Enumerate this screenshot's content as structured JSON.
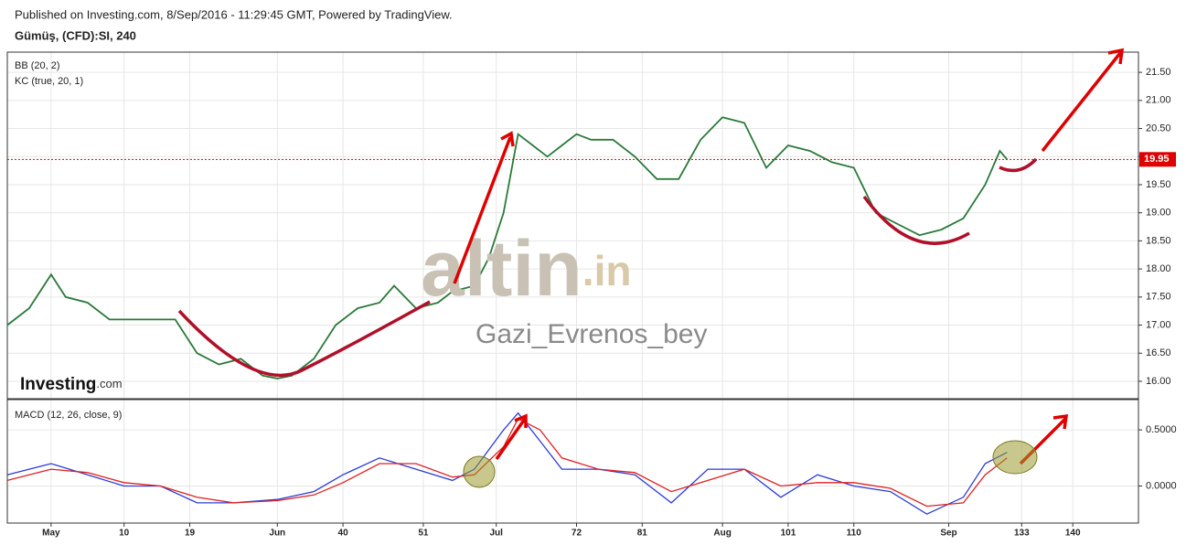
{
  "header": {
    "published": "Published on Investing.com, 8/Sep/2016 - 11:29:45 GMT, Powered by TradingView.",
    "symbol": "Gümüş, (CFD):SI, 240"
  },
  "watermark": {
    "brand": "altin",
    "brand_suffix": ".in",
    "author": "Gazi_Evrenos_bey"
  },
  "logo": {
    "name": "Investing",
    "suffix": ".com"
  },
  "chart_data": [
    {
      "type": "line",
      "annotations": [
        "BB (20, 2)",
        "KC (true, 20, 1)"
      ],
      "x": [
        -6,
        -3,
        0,
        2,
        5,
        8,
        11,
        14,
        17,
        20,
        23,
        26,
        29,
        31,
        33,
        36,
        39,
        42,
        45,
        47,
        50,
        53,
        55,
        58,
        60,
        62,
        64,
        66,
        68,
        70,
        72,
        74,
        77,
        80,
        83,
        86,
        89,
        92,
        95,
        98,
        101,
        104,
        107,
        110,
        113,
        116,
        119,
        122,
        125,
        128,
        130,
        131
      ],
      "values": [
        17.0,
        17.3,
        17.9,
        17.5,
        17.4,
        17.1,
        17.1,
        17.1,
        17.1,
        16.5,
        16.3,
        16.4,
        16.1,
        16.05,
        16.1,
        16.4,
        17.0,
        17.3,
        17.4,
        17.7,
        17.3,
        17.4,
        17.6,
        17.7,
        18.2,
        19.0,
        20.4,
        20.2,
        20.0,
        20.2,
        20.4,
        20.3,
        20.3,
        20.0,
        19.6,
        19.6,
        20.3,
        20.7,
        20.6,
        19.8,
        20.2,
        20.1,
        19.9,
        19.8,
        19.0,
        18.8,
        18.6,
        18.7,
        18.9,
        19.5,
        20.1,
        19.95
      ],
      "color": "#2a7a3a",
      "last_price": 19.95,
      "last_price_color": "#e00000",
      "xlim": [
        -6,
        149
      ],
      "ylim": [
        15.69,
        21.86
      ],
      "yticks": [
        {
          "value": 16,
          "label": "16.00"
        },
        {
          "value": 16.5,
          "label": "16.50"
        },
        {
          "value": 17,
          "label": "17.00"
        },
        {
          "value": 17.5,
          "label": "17.50"
        },
        {
          "value": 18,
          "label": "18.00"
        },
        {
          "value": 18.5,
          "label": "18.50"
        },
        {
          "value": 19,
          "label": "19.00"
        },
        {
          "value": 19.5,
          "label": "19.50"
        },
        {
          "value": 20,
          "label": "20.00"
        },
        {
          "value": 20.5,
          "label": "20.50"
        },
        {
          "value": 21,
          "label": "21.00"
        },
        {
          "value": 21.5,
          "label": "21.50"
        }
      ],
      "grid": true
    },
    {
      "type": "line",
      "title": "MACD (12, 26, close, 9)",
      "x": [
        -6,
        0,
        5,
        10,
        15,
        20,
        25,
        31,
        36,
        40,
        45,
        50,
        55,
        58,
        62,
        64,
        67,
        70,
        75,
        80,
        85,
        90,
        95,
        100,
        105,
        110,
        115,
        120,
        125,
        128,
        131
      ],
      "series": [
        {
          "color": "#2b3bd6",
          "values": [
            0.1,
            0.2,
            0.1,
            0.0,
            0.0,
            -0.15,
            -0.15,
            -0.12,
            -0.05,
            0.1,
            0.25,
            0.15,
            0.05,
            0.15,
            0.5,
            0.65,
            0.4,
            0.15,
            0.15,
            0.1,
            -0.15,
            0.15,
            0.15,
            -0.1,
            0.1,
            0.0,
            -0.05,
            -0.25,
            -0.1,
            0.2,
            0.3
          ]
        },
        {
          "color": "#e02020",
          "values": [
            0.05,
            0.15,
            0.12,
            0.03,
            0.0,
            -0.1,
            -0.15,
            -0.13,
            -0.08,
            0.03,
            0.2,
            0.2,
            0.08,
            0.1,
            0.35,
            0.6,
            0.5,
            0.25,
            0.15,
            0.12,
            -0.05,
            0.05,
            0.15,
            0.0,
            0.03,
            0.03,
            -0.02,
            -0.18,
            -0.15,
            0.1,
            0.25
          ]
        }
      ],
      "xlim": [
        -6,
        149
      ],
      "ylim": [
        -0.33,
        0.77
      ],
      "yticks": [
        {
          "value": 0,
          "label": "0.0000"
        },
        {
          "value": 0.5,
          "label": "0.5000"
        }
      ],
      "xticks": [
        {
          "value": 0,
          "label": "May"
        },
        10,
        19,
        {
          "value": 31,
          "label": "Jun"
        },
        40,
        51,
        {
          "value": 61,
          "label": "Jul"
        },
        72,
        81,
        {
          "value": 92,
          "label": "Aug"
        },
        101,
        110,
        {
          "value": 123,
          "label": "Sep"
        },
        133,
        140
      ],
      "grid": true
    }
  ]
}
